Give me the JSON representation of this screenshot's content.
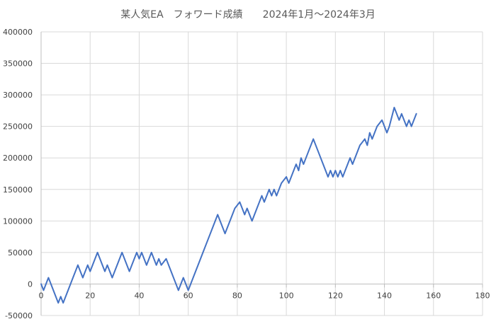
{
  "chart_data": {
    "type": "line",
    "title": "某人気EA　フォワード成績　　2024年1月～2024年3月",
    "xlabel": "",
    "ylabel": "",
    "xlim": [
      0,
      180
    ],
    "ylim": [
      -50000,
      400000
    ],
    "x_ticks": [
      0,
      20,
      40,
      60,
      80,
      100,
      120,
      140,
      160,
      180
    ],
    "y_ticks": [
      -50000,
      0,
      50000,
      100000,
      150000,
      200000,
      250000,
      300000,
      350000,
      400000
    ],
    "grid": true,
    "legend": "none",
    "colors": {
      "line": "#4472C4",
      "grid": "#D9D9D9",
      "axis": "#BFBFBF"
    },
    "series": [
      {
        "name": "",
        "x": [
          0,
          1,
          3,
          5,
          7,
          8,
          9,
          11,
          13,
          15,
          17,
          19,
          20,
          23,
          25,
          26,
          27,
          29,
          31,
          33,
          35,
          36,
          39,
          40,
          41,
          43,
          45,
          47,
          48,
          49,
          51,
          53,
          55,
          56,
          58,
          60,
          62,
          64,
          66,
          68,
          70,
          72,
          73,
          75,
          76,
          77,
          79,
          81,
          82,
          83,
          84,
          86,
          88,
          90,
          91,
          93,
          94,
          95,
          96,
          98,
          100,
          101,
          103,
          104,
          105,
          106,
          107,
          109,
          111,
          113,
          115,
          117,
          118,
          119,
          120,
          121,
          122,
          123,
          124,
          126,
          127,
          128,
          130,
          132,
          133,
          134,
          135,
          137,
          139,
          141,
          142,
          144,
          146,
          147,
          149,
          150,
          151,
          153
        ],
        "y": [
          0,
          -10000,
          10000,
          -10000,
          -30000,
          -20000,
          -30000,
          -10000,
          10000,
          30000,
          10000,
          30000,
          20000,
          50000,
          30000,
          20000,
          30000,
          10000,
          30000,
          50000,
          30000,
          20000,
          50000,
          40000,
          50000,
          30000,
          50000,
          30000,
          40000,
          30000,
          40000,
          20000,
          0,
          -10000,
          10000,
          -10000,
          10000,
          30000,
          50000,
          70000,
          90000,
          110000,
          100000,
          80000,
          90000,
          100000,
          120000,
          130000,
          120000,
          110000,
          120000,
          100000,
          120000,
          140000,
          130000,
          150000,
          140000,
          150000,
          140000,
          160000,
          170000,
          160000,
          180000,
          190000,
          180000,
          200000,
          190000,
          210000,
          230000,
          210000,
          190000,
          170000,
          180000,
          170000,
          180000,
          170000,
          180000,
          170000,
          180000,
          200000,
          190000,
          200000,
          220000,
          230000,
          220000,
          240000,
          230000,
          250000,
          260000,
          240000,
          250000,
          280000,
          260000,
          270000,
          250000,
          260000,
          250000,
          270000
        ]
      }
    ]
  }
}
